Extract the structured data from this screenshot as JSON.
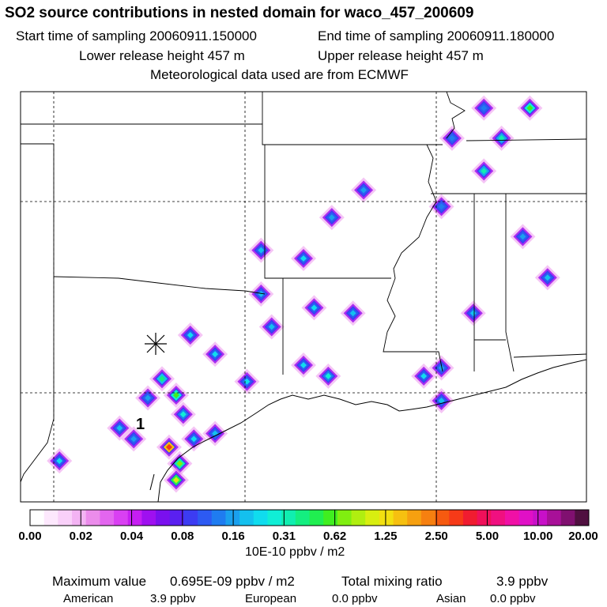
{
  "header": {
    "title": "SO2 source contributions in nested domain for waco_457_200609",
    "start_label": "Start time of sampling 20060911.150000",
    "end_label": "End time of sampling 20060911.180000",
    "lower_label": "Lower release height  457 m",
    "upper_label": "Upper release height  457 m",
    "met_label": "Meteorological data used are from ECMWF"
  },
  "chart_data": {
    "type": "heatmap",
    "title": "SO2 source contributions in nested domain for waco_457_200609",
    "colorbar": {
      "unit_label": "10E-10 ppbv / m2",
      "tick_labels": [
        "0.00",
        "0.02",
        "0.04",
        "0.08",
        "0.16",
        "0.31",
        "0.62",
        "1.25",
        "2.50",
        "5.00",
        "10.00",
        "20.00"
      ],
      "colors": [
        "#ffffff",
        "#fde8fd",
        "#f9d0f9",
        "#f3b3f3",
        "#eb8ceb",
        "#e366ef",
        "#d940f2",
        "#c61ef2",
        "#9f10f0",
        "#7a10ee",
        "#5a20f0",
        "#3c3cf2",
        "#2d5af2",
        "#1f7cf0",
        "#1aa0ee",
        "#14c0ee",
        "#10dcee",
        "#10eed6",
        "#10eeb0",
        "#14ee80",
        "#20ee50",
        "#40ee20",
        "#80ee10",
        "#b0ee10",
        "#d8ee10",
        "#f2e010",
        "#f6c010",
        "#f6a010",
        "#f68010",
        "#f65a10",
        "#f63a18",
        "#f01c30",
        "#f0105a",
        "#f01080",
        "#f010a6",
        "#e010c6",
        "#c810c8",
        "#a81098",
        "#801070",
        "#501040"
      ]
    },
    "plume_points": [
      {
        "lon": -98.2,
        "lat": 28.2,
        "level": 15
      },
      {
        "lon": -97.8,
        "lat": 27.8,
        "level": 14
      },
      {
        "lon": -96.8,
        "lat": 27.5,
        "level": 30
      },
      {
        "lon": -96.5,
        "lat": 26.9,
        "level": 22
      },
      {
        "lon": -96.6,
        "lat": 26.3,
        "level": 24
      },
      {
        "lon": -96.1,
        "lat": 27.8,
        "level": 16
      },
      {
        "lon": -95.5,
        "lat": 28.0,
        "level": 15
      },
      {
        "lon": -94.6,
        "lat": 29.9,
        "level": 16
      },
      {
        "lon": -93.0,
        "lat": 30.5,
        "level": 16
      },
      {
        "lon": -92.3,
        "lat": 30.1,
        "level": 17
      },
      {
        "lon": -89.6,
        "lat": 30.1,
        "level": 16
      },
      {
        "lon": -89.1,
        "lat": 29.2,
        "level": 15
      },
      {
        "lon": -97.0,
        "lat": 30.0,
        "level": 19
      },
      {
        "lon": -96.6,
        "lat": 29.4,
        "level": 21
      },
      {
        "lon": -96.4,
        "lat": 28.7,
        "level": 17
      },
      {
        "lon": -97.4,
        "lat": 29.3,
        "level": 14
      },
      {
        "lon": -95.5,
        "lat": 30.9,
        "level": 16
      },
      {
        "lon": -93.9,
        "lat": 31.9,
        "level": 15
      },
      {
        "lon": -94.2,
        "lat": 33.1,
        "level": 15
      },
      {
        "lon": -92.7,
        "lat": 32.6,
        "level": 16
      },
      {
        "lon": -91.6,
        "lat": 32.4,
        "level": 15
      },
      {
        "lon": -93.0,
        "lat": 34.4,
        "level": 16
      },
      {
        "lon": -94.2,
        "lat": 34.7,
        "level": 15
      },
      {
        "lon": -92.2,
        "lat": 35.9,
        "level": 14
      },
      {
        "lon": -91.3,
        "lat": 36.9,
        "level": 14
      },
      {
        "lon": -87.9,
        "lat": 37.6,
        "level": 18
      },
      {
        "lon": -87.4,
        "lat": 38.8,
        "level": 18
      },
      {
        "lon": -86.6,
        "lat": 39.9,
        "level": 21
      },
      {
        "lon": -87.9,
        "lat": 39.9,
        "level": 13
      },
      {
        "lon": -88.8,
        "lat": 38.8,
        "level": 13
      },
      {
        "lon": -89.1,
        "lat": 36.3,
        "level": 13
      },
      {
        "lon": -86.8,
        "lat": 35.2,
        "level": 14
      },
      {
        "lon": -86.1,
        "lat": 33.7,
        "level": 15
      },
      {
        "lon": -88.2,
        "lat": 32.4,
        "level": 15
      },
      {
        "lon": -89.1,
        "lat": 30.4,
        "level": 14
      },
      {
        "lon": -99.9,
        "lat": 27.0,
        "level": 16
      },
      {
        "lon": -96.2,
        "lat": 31.6,
        "level": 16
      }
    ],
    "source_marker": {
      "label": "1"
    }
  },
  "colorbar_unit": "10E-10 ppbv / m2",
  "footer": {
    "max_label": "Maximum value",
    "max_value": "0.695E-09 ppbv / m2",
    "total_label": "Total mixing ratio",
    "total_value": "3.9 ppbv",
    "american_label": "American",
    "american_value": "3.9 ppbv",
    "european_label": "European",
    "european_value": "0.0 ppbv",
    "asian_label": "Asian",
    "asian_value": "0.0 ppbv"
  }
}
